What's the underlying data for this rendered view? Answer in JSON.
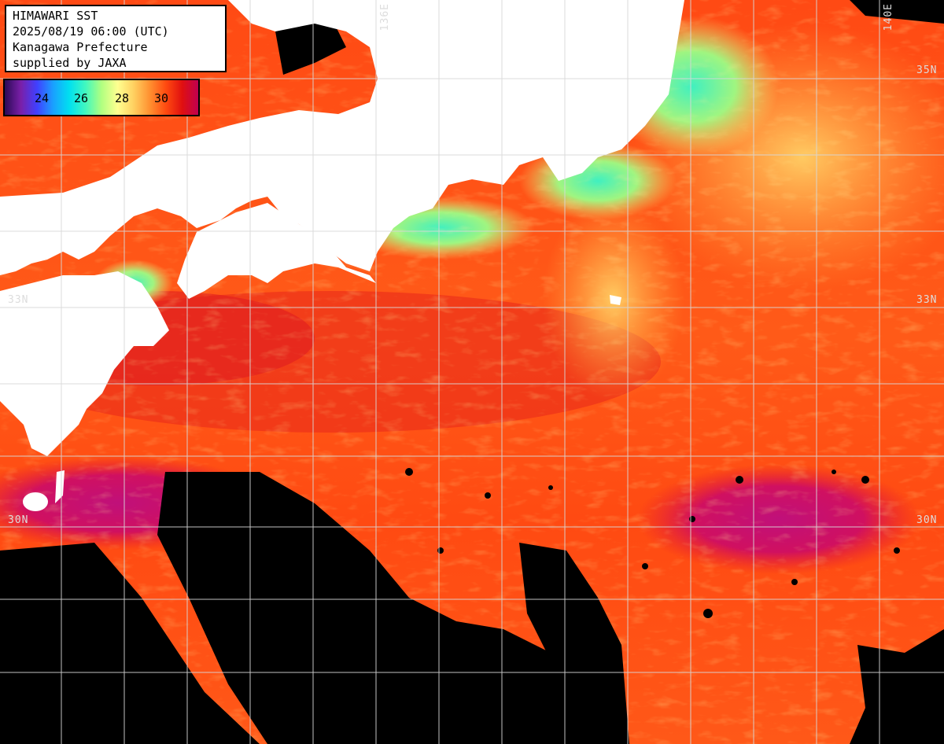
{
  "info": {
    "title": "HIMAWARI SST",
    "datetime": "2025/08/19 06:00 (UTC)",
    "region": "Kanagawa Prefecture",
    "credit": "supplied by JAXA"
  },
  "colorbar": {
    "ticks": [
      "24",
      "26",
      "28",
      "30"
    ],
    "colors": [
      "#2a0a55",
      "#7a1fa8",
      "#4040ff",
      "#1aa0ff",
      "#00e0f0",
      "#40f8c0",
      "#b0ff80",
      "#ffff90",
      "#ffd060",
      "#ff9030",
      "#ff4a10",
      "#e01010",
      "#c00050"
    ]
  },
  "grid_labels": {
    "lon_136": "136E",
    "lon_140": "140E",
    "lat_33_left": "33N",
    "lat_33_right": "33N",
    "lat_30_left": "30N",
    "lat_30_right": "30N",
    "lat_35_right": "35N"
  },
  "colors": {
    "land": "#ffffff",
    "cloud": "#000000",
    "sea_warm": "#ff5a18",
    "sea_hot": "#e01f2a",
    "sea_very_hot": "#c0107a",
    "coastal_cool": "#9cf27a",
    "coastal_cold": "#30e0d0",
    "gridline": "#d8d8d8"
  }
}
